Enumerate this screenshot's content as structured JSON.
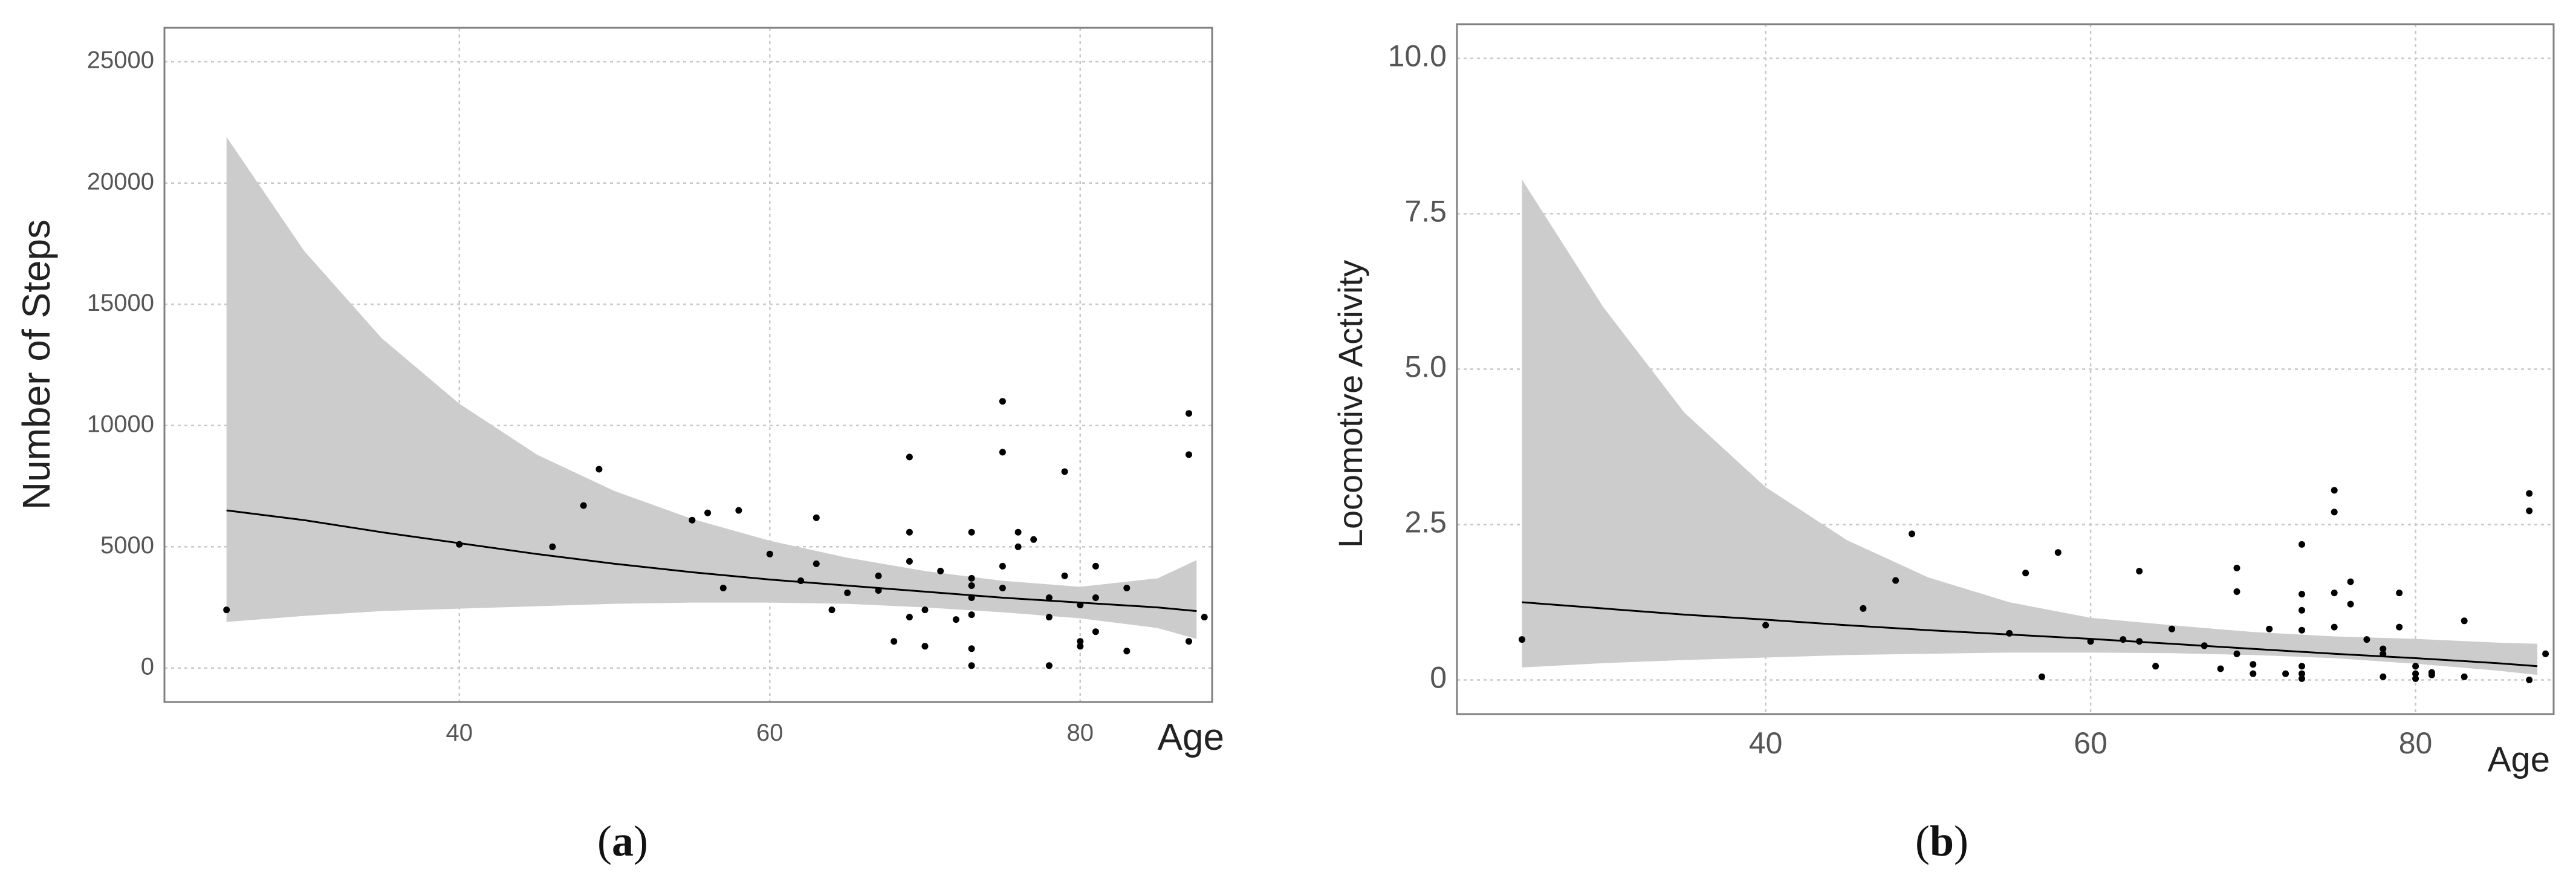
{
  "chart_data": [
    {
      "type": "scatter",
      "panel": "a",
      "caption_letter": "a",
      "caption_open": "(",
      "caption_close": ")",
      "xlabel": "Age",
      "ylabel": "Number of Steps",
      "xlim": [
        21,
        88.5
      ],
      "ylim": [
        -1400,
        26400
      ],
      "xticks": [
        40,
        60,
        80
      ],
      "xtick_labels": [
        "40",
        "60",
        "80"
      ],
      "yticks": [
        0,
        5000,
        10000,
        15000,
        20000,
        25000
      ],
      "ytick_labels": [
        "0",
        "5000",
        "10000",
        "15000",
        "20000",
        "25000"
      ],
      "grid": true,
      "colors": {
        "points": "#000000",
        "line": "#000000",
        "band": "#cccccc",
        "grid": "#c8c8c8",
        "frame": "#808080"
      },
      "points": [
        {
          "x": 25,
          "y": 2400
        },
        {
          "x": 40,
          "y": 5100
        },
        {
          "x": 46,
          "y": 5000
        },
        {
          "x": 48,
          "y": 6700
        },
        {
          "x": 49,
          "y": 8200
        },
        {
          "x": 55,
          "y": 6100
        },
        {
          "x": 56,
          "y": 6400
        },
        {
          "x": 57,
          "y": 3300
        },
        {
          "x": 58,
          "y": 6500
        },
        {
          "x": 60,
          "y": 4700
        },
        {
          "x": 62,
          "y": 3600
        },
        {
          "x": 63,
          "y": 6200
        },
        {
          "x": 63,
          "y": 4300
        },
        {
          "x": 64,
          "y": 2400
        },
        {
          "x": 65,
          "y": 3100
        },
        {
          "x": 67,
          "y": 3800
        },
        {
          "x": 67,
          "y": 3200
        },
        {
          "x": 68,
          "y": 1100
        },
        {
          "x": 69,
          "y": 8700
        },
        {
          "x": 69,
          "y": 5600
        },
        {
          "x": 69,
          "y": 4400
        },
        {
          "x": 69,
          "y": 2100
        },
        {
          "x": 70,
          "y": 2400
        },
        {
          "x": 70,
          "y": 900
        },
        {
          "x": 71,
          "y": 4000
        },
        {
          "x": 72,
          "y": 2000
        },
        {
          "x": 73,
          "y": 5600
        },
        {
          "x": 73,
          "y": 3700
        },
        {
          "x": 73,
          "y": 3400
        },
        {
          "x": 73,
          "y": 2900
        },
        {
          "x": 73,
          "y": 2200
        },
        {
          "x": 73,
          "y": 800
        },
        {
          "x": 73,
          "y": 100
        },
        {
          "x": 75,
          "y": 11000
        },
        {
          "x": 75,
          "y": 8900
        },
        {
          "x": 75,
          "y": 4200
        },
        {
          "x": 75,
          "y": 3300
        },
        {
          "x": 76,
          "y": 5600
        },
        {
          "x": 76,
          "y": 5000
        },
        {
          "x": 77,
          "y": 5300
        },
        {
          "x": 78,
          "y": 2900
        },
        {
          "x": 78,
          "y": 2100
        },
        {
          "x": 78,
          "y": 100
        },
        {
          "x": 79,
          "y": 8100
        },
        {
          "x": 79,
          "y": 3800
        },
        {
          "x": 80,
          "y": 2600
        },
        {
          "x": 80,
          "y": 1100
        },
        {
          "x": 80,
          "y": 900
        },
        {
          "x": 81,
          "y": 4200
        },
        {
          "x": 81,
          "y": 2900
        },
        {
          "x": 81,
          "y": 1500
        },
        {
          "x": 83,
          "y": 3300
        },
        {
          "x": 83,
          "y": 700
        },
        {
          "x": 87,
          "y": 10500
        },
        {
          "x": 87,
          "y": 8800
        },
        {
          "x": 87,
          "y": 1100
        },
        {
          "x": 88,
          "y": 2100
        }
      ],
      "fit": {
        "x": [
          25,
          30,
          35,
          40,
          45,
          50,
          55,
          60,
          65,
          70,
          75,
          80,
          85,
          87.5
        ],
        "y": [
          6500,
          6100,
          5600,
          5150,
          4700,
          4300,
          3950,
          3650,
          3400,
          3150,
          2900,
          2700,
          2500,
          2350
        ],
        "lower": [
          1900,
          2150,
          2350,
          2450,
          2550,
          2650,
          2700,
          2700,
          2650,
          2500,
          2300,
          2050,
          1650,
          1200
        ],
        "upper": [
          21900,
          17200,
          13600,
          10900,
          8800,
          7300,
          6150,
          5250,
          4550,
          4000,
          3600,
          3350,
          3700,
          4450
        ]
      }
    },
    {
      "type": "scatter",
      "panel": "b",
      "caption_letter": "b",
      "caption_open": "(",
      "caption_close": ")",
      "xlabel": "Age",
      "ylabel": "Locomotive Activity",
      "xlim": [
        21,
        88.5
      ],
      "ylim": [
        -0.55,
        10.55
      ],
      "xticks": [
        40,
        60,
        80
      ],
      "xtick_labels": [
        "40",
        "60",
        "80"
      ],
      "yticks": [
        0,
        2.5,
        5,
        7.5,
        10
      ],
      "ytick_labels": [
        "0",
        "2.5",
        "5.0",
        "7.5",
        "10.0"
      ],
      "grid": true,
      "colors": {
        "points": "#000000",
        "line": "#000000",
        "band": "#cccccc",
        "grid": "#c8c8c8",
        "frame": "#808080"
      },
      "points": [
        {
          "x": 25,
          "y": 0.65
        },
        {
          "x": 40,
          "y": 0.88
        },
        {
          "x": 46,
          "y": 1.15
        },
        {
          "x": 48,
          "y": 1.6
        },
        {
          "x": 49,
          "y": 2.35
        },
        {
          "x": 55,
          "y": 0.75
        },
        {
          "x": 56,
          "y": 1.72
        },
        {
          "x": 57,
          "y": 0.05
        },
        {
          "x": 58,
          "y": 2.05
        },
        {
          "x": 60,
          "y": 0.62
        },
        {
          "x": 62,
          "y": 0.65
        },
        {
          "x": 63,
          "y": 1.75
        },
        {
          "x": 63,
          "y": 0.62
        },
        {
          "x": 64,
          "y": 0.22
        },
        {
          "x": 65,
          "y": 0.82
        },
        {
          "x": 67,
          "y": 0.55
        },
        {
          "x": 67,
          "y": 0.55
        },
        {
          "x": 68,
          "y": 0.18
        },
        {
          "x": 69,
          "y": 1.8
        },
        {
          "x": 69,
          "y": 1.42
        },
        {
          "x": 69,
          "y": 0.42
        },
        {
          "x": 70,
          "y": 0.25
        },
        {
          "x": 70,
          "y": 0.1
        },
        {
          "x": 71,
          "y": 0.82
        },
        {
          "x": 72,
          "y": 0.1
        },
        {
          "x": 73,
          "y": 2.18
        },
        {
          "x": 73,
          "y": 1.38
        },
        {
          "x": 73,
          "y": 1.12
        },
        {
          "x": 73,
          "y": 0.8
        },
        {
          "x": 73,
          "y": 0.22
        },
        {
          "x": 73,
          "y": 0.1
        },
        {
          "x": 73,
          "y": 0.02
        },
        {
          "x": 75,
          "y": 3.05
        },
        {
          "x": 75,
          "y": 2.7
        },
        {
          "x": 75,
          "y": 1.4
        },
        {
          "x": 75,
          "y": 0.85
        },
        {
          "x": 76,
          "y": 1.58
        },
        {
          "x": 76,
          "y": 1.22
        },
        {
          "x": 77,
          "y": 0.65
        },
        {
          "x": 78,
          "y": 0.5
        },
        {
          "x": 78,
          "y": 0.42
        },
        {
          "x": 78,
          "y": 0.05
        },
        {
          "x": 79,
          "y": 1.4
        },
        {
          "x": 79,
          "y": 0.85
        },
        {
          "x": 80,
          "y": 0.22
        },
        {
          "x": 80,
          "y": 0.1
        },
        {
          "x": 80,
          "y": 0.02
        },
        {
          "x": 81,
          "y": 0.12
        },
        {
          "x": 81,
          "y": 0.08
        },
        {
          "x": 83,
          "y": 0.95
        },
        {
          "x": 83,
          "y": 0.05
        },
        {
          "x": 87,
          "y": 3.0
        },
        {
          "x": 87,
          "y": 2.72
        },
        {
          "x": 87,
          "y": 0.0
        },
        {
          "x": 88,
          "y": 0.42
        }
      ],
      "fit": {
        "x": [
          25,
          30,
          35,
          40,
          45,
          50,
          55,
          60,
          65,
          70,
          75,
          80,
          85,
          87.5
        ],
        "y": [
          1.25,
          1.15,
          1.05,
          0.97,
          0.88,
          0.8,
          0.73,
          0.66,
          0.58,
          0.5,
          0.42,
          0.35,
          0.27,
          0.22
        ],
        "lower": [
          0.2,
          0.27,
          0.32,
          0.36,
          0.4,
          0.42,
          0.44,
          0.44,
          0.43,
          0.4,
          0.35,
          0.26,
          0.15,
          0.08
        ],
        "upper": [
          8.05,
          6.0,
          4.3,
          3.1,
          2.25,
          1.65,
          1.25,
          1.0,
          0.88,
          0.77,
          0.7,
          0.66,
          0.6,
          0.58
        ]
      }
    }
  ]
}
